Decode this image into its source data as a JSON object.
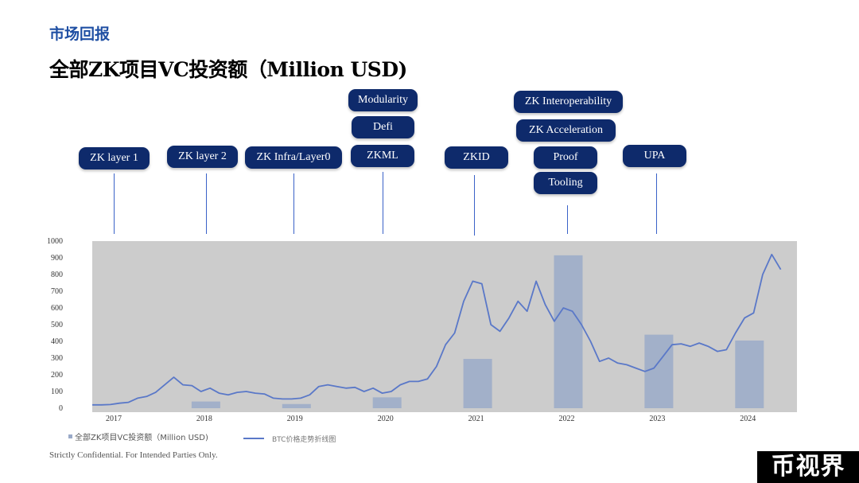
{
  "header": {
    "section_label": "市场回报",
    "title": "全部ZK项目VC投资额（Million USD)"
  },
  "tags": [
    {
      "label": "ZK layer 1"
    },
    {
      "label": "ZK layer 2"
    },
    {
      "label": "ZK Infra/Layer0"
    },
    {
      "label": "Modularity"
    },
    {
      "label": "Defi"
    },
    {
      "label": "ZKML"
    },
    {
      "label": "ZKID"
    },
    {
      "label": "ZK Interoperability"
    },
    {
      "label": "ZK Acceleration"
    },
    {
      "label": "Proof"
    },
    {
      "label": "Tooling"
    },
    {
      "label": "UPA"
    }
  ],
  "chart_data": {
    "type": "bar",
    "categories": [
      "2017",
      "2018",
      "2019",
      "2020",
      "2021",
      "2022",
      "2023",
      "2024"
    ],
    "ylim": [
      0,
      1000
    ],
    "yticks": [
      0,
      100,
      200,
      300,
      400,
      500,
      600,
      700,
      800,
      900,
      1000
    ],
    "grid": false,
    "legend_position": "bottom-left",
    "series": [
      {
        "name": "全部ZK项目VC投资额（Million USD)",
        "type": "bar",
        "color": "#9aaac8",
        "values": [
          0,
          40,
          25,
          65,
          295,
          915,
          440,
          405
        ]
      },
      {
        "name": "BTC价格走势折线图",
        "type": "line",
        "color": "#5a78c8",
        "x": [
          2017.0,
          2017.1,
          2017.2,
          2017.3,
          2017.4,
          2017.5,
          2017.6,
          2017.7,
          2017.8,
          2017.9,
          2018.0,
          2018.1,
          2018.2,
          2018.3,
          2018.4,
          2018.5,
          2018.6,
          2018.7,
          2018.8,
          2018.9,
          2019.0,
          2019.1,
          2019.2,
          2019.3,
          2019.4,
          2019.5,
          2019.6,
          2019.7,
          2019.8,
          2019.9,
          2020.0,
          2020.1,
          2020.2,
          2020.3,
          2020.4,
          2020.5,
          2020.6,
          2020.7,
          2020.8,
          2020.9,
          2021.0,
          2021.1,
          2021.2,
          2021.3,
          2021.4,
          2021.5,
          2021.6,
          2021.7,
          2021.8,
          2021.9,
          2022.0,
          2022.1,
          2022.2,
          2022.3,
          2022.4,
          2022.5,
          2022.6,
          2022.7,
          2022.8,
          2022.9,
          2023.0,
          2023.1,
          2023.2,
          2023.3,
          2023.4,
          2023.5,
          2023.6,
          2023.7,
          2023.8,
          2023.9,
          2024.0,
          2024.1,
          2024.2,
          2024.3,
          2024.4,
          2024.5,
          2024.6
        ],
        "values": [
          20,
          20,
          22,
          30,
          35,
          60,
          70,
          95,
          140,
          185,
          140,
          135,
          100,
          120,
          90,
          80,
          95,
          100,
          90,
          85,
          60,
          55,
          55,
          60,
          80,
          130,
          140,
          130,
          120,
          125,
          100,
          120,
          90,
          100,
          140,
          160,
          160,
          175,
          250,
          380,
          450,
          640,
          760,
          745,
          500,
          460,
          540,
          640,
          580,
          760,
          620,
          520,
          600,
          580,
          500,
          400,
          280,
          300,
          270,
          260,
          240,
          220,
          240,
          310,
          380,
          385,
          370,
          390,
          370,
          340,
          350,
          450,
          540,
          570,
          800,
          920,
          830
        ]
      }
    ],
    "xlabel": "",
    "ylabel": ""
  },
  "legend": {
    "bar_label": "全部ZK项目VC投资额（Million USD)",
    "line_label": "BTC价格走势折线图"
  },
  "footer": {
    "note": "Strictly Confidential. For Intended Parties Only.",
    "watermark": "币视界"
  }
}
